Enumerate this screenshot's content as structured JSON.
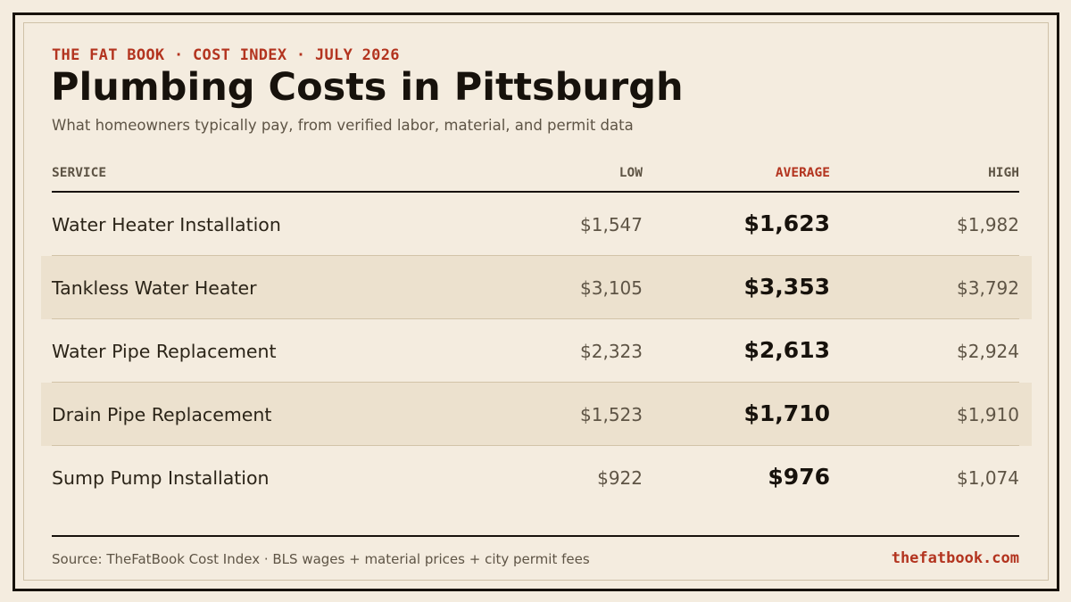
{
  "header": {
    "kicker": "THE FAT BOOK · COST INDEX · JULY 2026",
    "title": "Plumbing Costs in Pittsburgh",
    "subtitle": "What homeowners typically pay, from verified labor, material, and permit data"
  },
  "table": {
    "columns": {
      "service": "SERVICE",
      "low": "LOW",
      "average": "AVERAGE",
      "high": "HIGH"
    },
    "rows": [
      {
        "service": "Water Heater Installation",
        "low": "$1,547",
        "average": "$1,623",
        "high": "$1,982"
      },
      {
        "service": "Tankless Water Heater",
        "low": "$3,105",
        "average": "$3,353",
        "high": "$3,792"
      },
      {
        "service": "Water Pipe Replacement",
        "low": "$2,323",
        "average": "$2,613",
        "high": "$2,924"
      },
      {
        "service": "Drain Pipe Replacement",
        "low": "$1,523",
        "average": "$1,710",
        "high": "$1,910"
      },
      {
        "service": "Sump Pump Installation",
        "low": "$922",
        "average": "$976",
        "high": "$1,074"
      }
    ]
  },
  "footer": {
    "source": "Source: TheFatBook Cost Index · BLS wages + material prices + city permit fees",
    "site": "thefatbook.com"
  },
  "colors": {
    "background": "#f4ecdf",
    "accent": "#b3341f",
    "ink": "#17120c",
    "row_shade": "#ece1ce"
  }
}
